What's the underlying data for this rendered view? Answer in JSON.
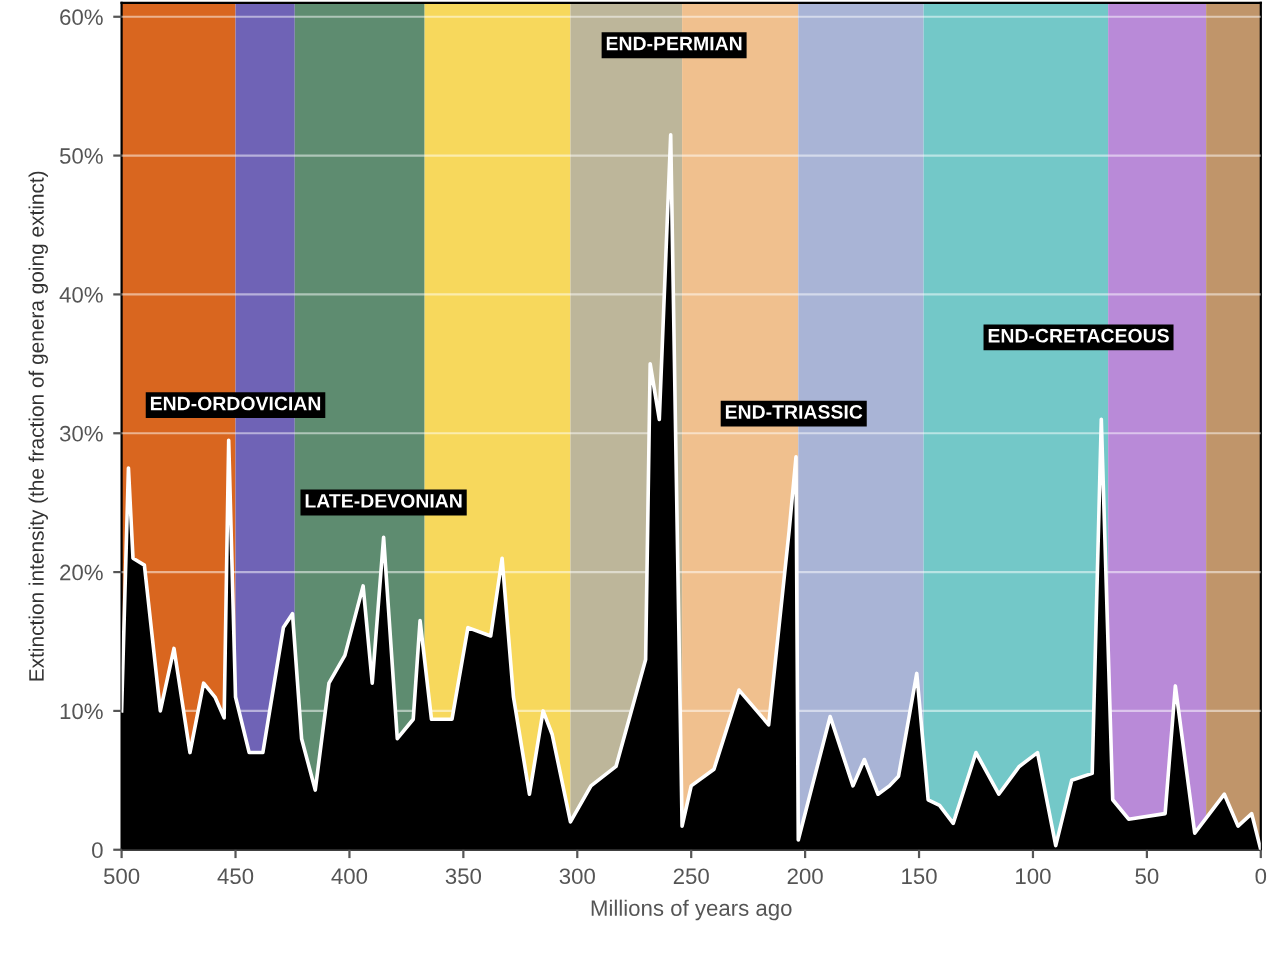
{
  "chart_data": {
    "type": "area",
    "xlabel": "Millions of years ago",
    "ylabel": "Extinction intensity (the fraction of genera going extinct)",
    "x": [
      500,
      497,
      495,
      490,
      483,
      477,
      470,
      464,
      459,
      455,
      453,
      450,
      444,
      438,
      433,
      429,
      425,
      421,
      415,
      409,
      402,
      394,
      390,
      385,
      379,
      372,
      369,
      364,
      355,
      348,
      338,
      333,
      328,
      321,
      315,
      311,
      303,
      294,
      283,
      270,
      268,
      264,
      259,
      254,
      250,
      240,
      229,
      216,
      207,
      204,
      203,
      189,
      179,
      174,
      168,
      163,
      159,
      151,
      146,
      141,
      135,
      125,
      115,
      106,
      98,
      90,
      83,
      74,
      70,
      65,
      58,
      42,
      37.5,
      29,
      16,
      10,
      4,
      0
    ],
    "series": [
      {
        "color": "#000000",
        "values": [
          10,
          27.5,
          21,
          20.5,
          10,
          14.5,
          7,
          12,
          11,
          9.5,
          29.5,
          11,
          7,
          7,
          12,
          16,
          17,
          8,
          4.3,
          12,
          14,
          19,
          12,
          22.5,
          8,
          9.4,
          16.5,
          9.4,
          9.4,
          16,
          15.4,
          21,
          11,
          4,
          10,
          8.3,
          2,
          4.6,
          6,
          13.7,
          35,
          31,
          51.5,
          1.7,
          4.6,
          5.8,
          11.5,
          9,
          23,
          28.3,
          0.7,
          9.6,
          4.6,
          6.5,
          4,
          4.6,
          5.3,
          12.7,
          3.6,
          3.2,
          1.9,
          7,
          4,
          6,
          7,
          0.3,
          5,
          5.5,
          31,
          3.6,
          2.2,
          2.6,
          11.8,
          1.2,
          4,
          1.7,
          2.6,
          0
        ]
      }
    ],
    "xlim": [
      500,
      0
    ],
    "xticks": [
      500,
      450,
      400,
      350,
      300,
      250,
      200,
      150,
      100,
      50,
      0
    ],
    "ylim": [
      0,
      61
    ],
    "yticks": [
      {
        "value": 0,
        "label": "0"
      },
      {
        "value": 10,
        "label": "10%"
      },
      {
        "value": 20,
        "label": "20%"
      },
      {
        "value": 30,
        "label": "30%"
      },
      {
        "value": 40,
        "label": "40%"
      },
      {
        "value": 50,
        "label": "50%"
      },
      {
        "value": 60,
        "label": "60%"
      }
    ],
    "grid": "y",
    "bands": [
      {
        "axis": "x",
        "from": 500,
        "to": 450,
        "color": "#d9661f"
      },
      {
        "axis": "x",
        "from": 450,
        "to": 424,
        "color": "#6f63b6"
      },
      {
        "axis": "x",
        "from": 424,
        "to": 367,
        "color": "#5e8c70"
      },
      {
        "axis": "x",
        "from": 367,
        "to": 303,
        "color": "#f7d85c"
      },
      {
        "axis": "x",
        "from": 303,
        "to": 254,
        "color": "#bdb69a"
      },
      {
        "axis": "x",
        "from": 254,
        "to": 203,
        "color": "#f0c08e"
      },
      {
        "axis": "x",
        "from": 203,
        "to": 148,
        "color": "#a9b4d6"
      },
      {
        "axis": "x",
        "from": 148,
        "to": 67,
        "color": "#73c8c8"
      },
      {
        "axis": "x",
        "from": 67,
        "to": 24,
        "color": "#b98ad8"
      },
      {
        "axis": "x",
        "from": 24,
        "to": 0,
        "color": "#c0956a"
      }
    ],
    "annotations": [
      "END-ORDOVICIAN",
      "LATE-DEVONIAN",
      "END-PERMIAN",
      "END-TRIASSIC",
      "END-CRETACEOUS"
    ]
  }
}
